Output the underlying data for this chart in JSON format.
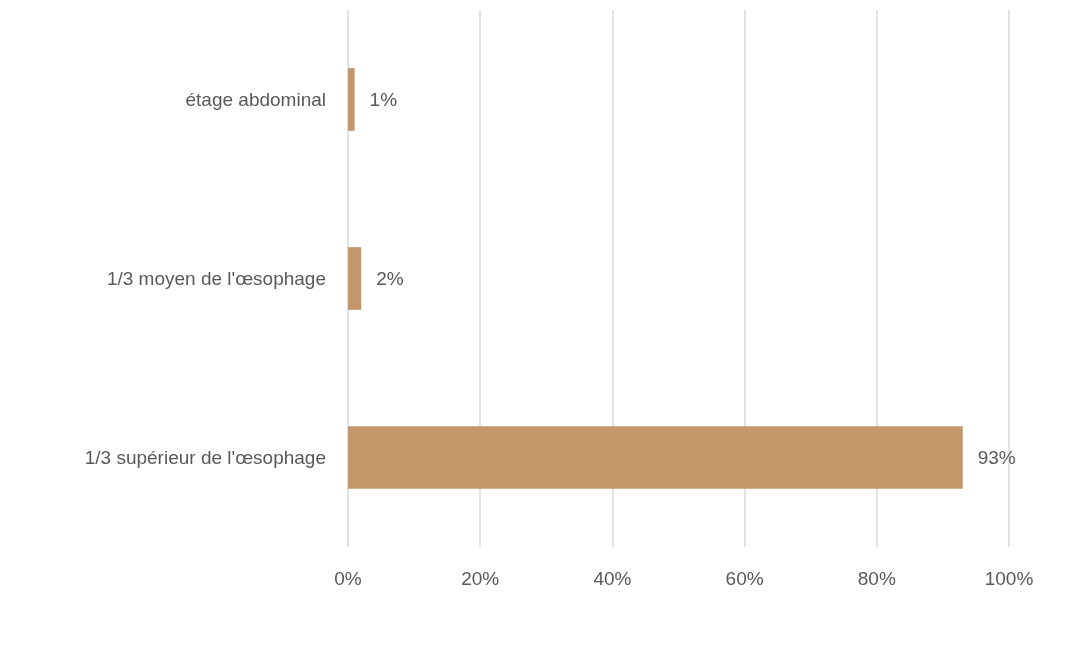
{
  "chart_data": {
    "type": "bar",
    "orientation": "horizontal",
    "categories": [
      "étage abdominal",
      "1/3 moyen de l'œsophage",
      "1/3 supérieur de l'œsophage"
    ],
    "values": [
      1,
      2,
      93
    ],
    "color": "#c4976b",
    "value_labels": [
      "1%",
      "2%",
      "93%"
    ],
    "xlim": [
      0,
      100
    ],
    "xticks": [
      {
        "value": 0,
        "label": "0%"
      },
      {
        "value": 20,
        "label": "20%"
      },
      {
        "value": 40,
        "label": "40%"
      },
      {
        "value": 60,
        "label": "60%"
      },
      {
        "value": 80,
        "label": "80%"
      },
      {
        "value": 100,
        "label": "100%"
      }
    ],
    "grid": "x"
  }
}
